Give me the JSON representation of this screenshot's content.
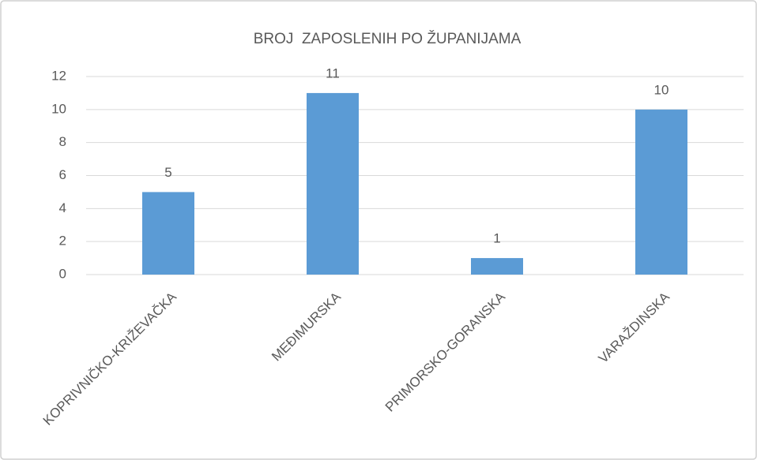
{
  "chart_data": {
    "type": "bar",
    "title": "BROJ  ZAPOSLENIH PO ŽUPANIJAMA",
    "categories": [
      "KOPRIVNIČKO-KRIŽEVAČKA",
      "MEĐIMURSKA",
      "PRIMORSKO-GORANSKA",
      "VARAŽDINSKA"
    ],
    "values": [
      5,
      11,
      1,
      10
    ],
    "color": "#5b9bd5",
    "ylim": [
      0,
      12
    ],
    "yticks": [
      0,
      2,
      4,
      6,
      8,
      10,
      12
    ],
    "grid": true
  }
}
